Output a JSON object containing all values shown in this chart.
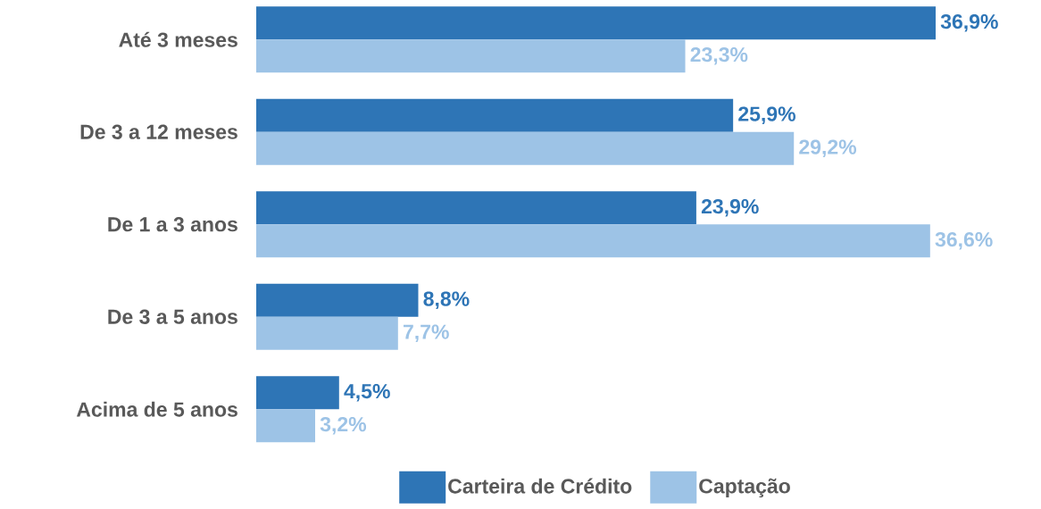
{
  "chart_data": {
    "type": "bar",
    "orientation": "horizontal",
    "categories": [
      "Até 3 meses",
      "De 3 a 12 meses",
      "De 1 a 3 anos",
      "De 3 a 5 anos",
      "Acima de 5 anos"
    ],
    "series": [
      {
        "name": "Carteira de Crédito",
        "color": "#2e75b6",
        "values": [
          36.9,
          25.9,
          23.9,
          8.8,
          4.5
        ],
        "value_labels": [
          "36,9%",
          "25,9%",
          "23,9%",
          "8,8%",
          "4,5%"
        ]
      },
      {
        "name": "Captação",
        "color": "#9dc3e6",
        "values": [
          23.3,
          29.2,
          36.6,
          7.7,
          3.2
        ],
        "value_labels": [
          "23,3%",
          "29,2%",
          "36,6%",
          "7,7%",
          "3,2%"
        ]
      }
    ],
    "legend": "bottom",
    "tick_labels": "y"
  }
}
